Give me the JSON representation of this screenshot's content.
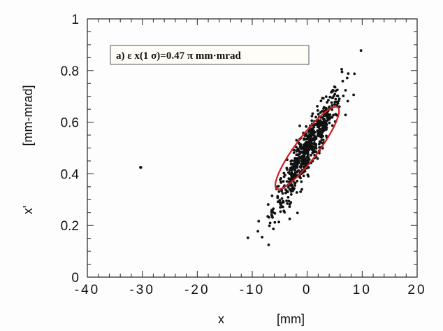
{
  "chart_data": {
    "type": "scatter",
    "annotation": "a) ε x(1 σ)=0.47 π mm·mrad",
    "xlabel_symbol": "x",
    "xlabel_unit": "[mm]",
    "ylabel_symbol": "x'",
    "ylabel_unit": "[mm-mrad]",
    "xlim": [
      -40,
      20
    ],
    "ylim": [
      0,
      1
    ],
    "x_ticks": [
      -40,
      -30,
      -20,
      -10,
      0,
      10,
      20
    ],
    "x_tick_labels": [
      "-40",
      "-30",
      "-20",
      "-10",
      "0",
      "10",
      "20"
    ],
    "y_ticks": [
      0,
      0.2,
      0.4,
      0.6,
      0.8,
      1
    ],
    "y_tick_labels": [
      "0",
      "0.2",
      "0.4",
      "0.6",
      "0.8",
      "1"
    ],
    "grid": false,
    "marker_color": "#111111",
    "ellipse_color": "#cc1f1f",
    "outlier_points": [
      [
        -30.3,
        0.425
      ]
    ],
    "cluster": {
      "n_points": 620,
      "x_mean": 0.0,
      "x_std": 3.1,
      "y_mean": 0.49,
      "y_std": 0.12,
      "correlation": 0.93
    },
    "ellipse": {
      "center": [
        0.0,
        0.5
      ],
      "x_extent": [
        -5.8,
        5.8
      ],
      "y_extent": [
        0.32,
        0.64
      ]
    }
  }
}
